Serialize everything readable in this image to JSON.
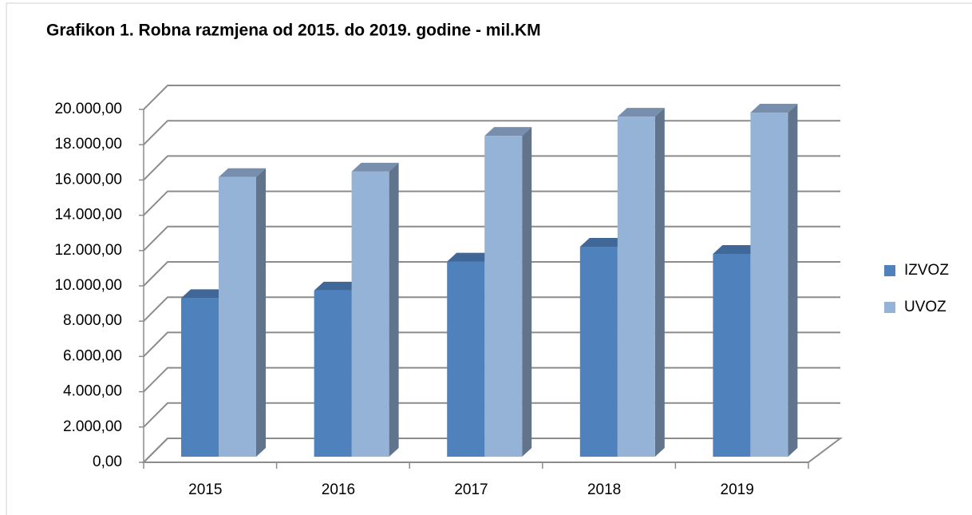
{
  "chart_data": {
    "type": "bar3d",
    "title": "Grafikon 1. Robna razmjena od 2015. do 2019. godine - mil.KM",
    "categories": [
      "2015",
      "2016",
      "2017",
      "2018",
      "2019"
    ],
    "series": [
      {
        "name": "IZVOZ",
        "color": "#4f81bd",
        "values": [
          8990,
          9420,
          11055,
          11900,
          11495
        ]
      },
      {
        "name": "UVOZ",
        "color": "#95b3d7",
        "values": [
          15850,
          16160,
          18185,
          19270,
          19500
        ]
      }
    ],
    "ylim": [
      0,
      20000
    ],
    "yticks": [
      {
        "value": 0,
        "label": "0,00"
      },
      {
        "value": 2000,
        "label": "2.000,00"
      },
      {
        "value": 4000,
        "label": "4.000,00"
      },
      {
        "value": 6000,
        "label": "6.000,00"
      },
      {
        "value": 8000,
        "label": "8.000,00"
      },
      {
        "value": 10000,
        "label": "10.000,00"
      },
      {
        "value": 12000,
        "label": "12.000,00"
      },
      {
        "value": 14000,
        "label": "14.000,00"
      },
      {
        "value": 16000,
        "label": "16.000,00"
      },
      {
        "value": 18000,
        "label": "18.000,00"
      },
      {
        "value": 20000,
        "label": "20.000,00"
      }
    ],
    "grid": true,
    "legend": "right"
  }
}
